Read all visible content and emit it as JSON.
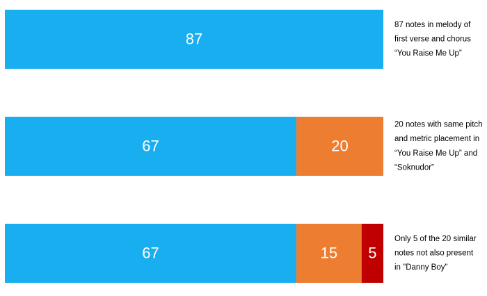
{
  "chart_data": {
    "type": "stacked-bar-horizontal",
    "categories": [
      null,
      null,
      null
    ],
    "series": [
      {
        "color": "#19aeef",
        "values": [
          87,
          67,
          67
        ]
      },
      {
        "color": "#ed7d31",
        "values": [
          null,
          20,
          15
        ]
      },
      {
        "color": "#c00000",
        "values": [
          null,
          null,
          5
        ]
      }
    ],
    "xlim": [
      0,
      87
    ],
    "annotations": [
      [
        "87 notes in melody of",
        "first verse and chorus",
        "“You Raise Me Up”"
      ],
      [
        "20 notes with same pitch",
        "and metric placement in",
        "“You Raise Me Up” and",
        "“Soknudor”"
      ],
      [
        "Only 5 of the 20 similar",
        "notes not also present",
        "in \"Danny Boy\""
      ]
    ]
  }
}
